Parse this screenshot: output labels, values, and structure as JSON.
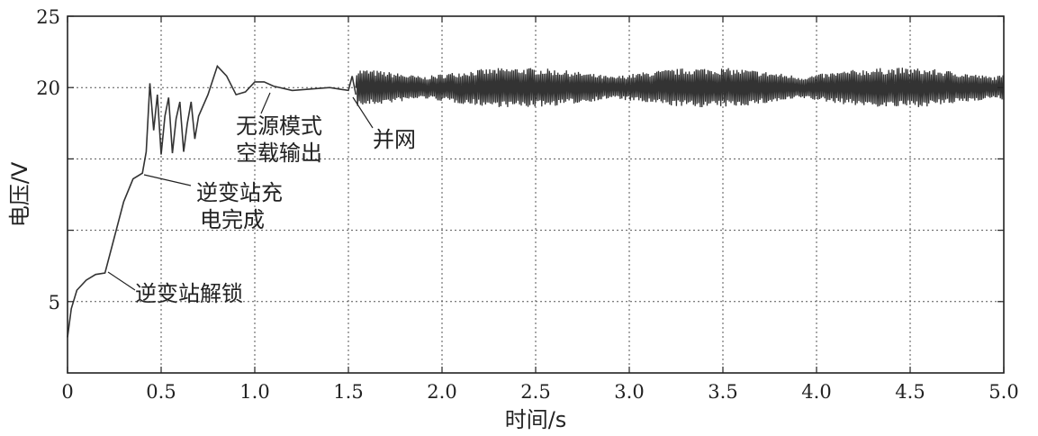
{
  "chart_data": {
    "type": "line",
    "xlabel": "时间/s",
    "ylabel": "电压/V",
    "xlim": [
      0,
      5.0
    ],
    "ylim": [
      0,
      25
    ],
    "grid": true,
    "x_ticks": [
      {
        "value": 0,
        "label": "0"
      },
      {
        "value": 0.5,
        "label": "0.5"
      },
      {
        "value": 1.0,
        "label": "1.0"
      },
      {
        "value": 1.5,
        "label": "1.5"
      },
      {
        "value": 2.0,
        "label": "2.0"
      },
      {
        "value": 2.5,
        "label": "2.5"
      },
      {
        "value": 3.0,
        "label": "3.0"
      },
      {
        "value": 3.5,
        "label": "3.5"
      },
      {
        "value": 4.0,
        "label": "4.0"
      },
      {
        "value": 4.5,
        "label": "4.5"
      },
      {
        "value": 5.0,
        "label": "5.0"
      }
    ],
    "y_ticks": [
      {
        "value": 5,
        "label": "5"
      },
      {
        "value": 20,
        "label": "20"
      },
      {
        "value": 25,
        "label": "25"
      }
    ],
    "y_grid": [
      5,
      10,
      15,
      20,
      25
    ],
    "series": [
      {
        "color": "#333333",
        "points": [
          [
            0.0,
            2.5
          ],
          [
            0.02,
            4.5
          ],
          [
            0.05,
            5.8
          ],
          [
            0.1,
            6.5
          ],
          [
            0.15,
            6.9
          ],
          [
            0.2,
            7.0
          ],
          [
            0.25,
            9.5
          ],
          [
            0.3,
            12.0
          ],
          [
            0.35,
            13.6
          ],
          [
            0.4,
            14.0
          ],
          [
            0.42,
            15.5
          ],
          [
            0.44,
            20.3
          ],
          [
            0.46,
            17.0
          ],
          [
            0.48,
            19.5
          ],
          [
            0.5,
            15.3
          ],
          [
            0.52,
            18.0
          ],
          [
            0.54,
            19.3
          ],
          [
            0.56,
            15.4
          ],
          [
            0.58,
            17.8
          ],
          [
            0.6,
            19.0
          ],
          [
            0.62,
            15.5
          ],
          [
            0.64,
            17.5
          ],
          [
            0.66,
            19.0
          ],
          [
            0.68,
            16.4
          ],
          [
            0.7,
            18.0
          ],
          [
            0.75,
            19.5
          ],
          [
            0.8,
            21.5
          ],
          [
            0.85,
            20.8
          ],
          [
            0.9,
            19.5
          ],
          [
            0.95,
            19.7
          ],
          [
            1.0,
            20.4
          ],
          [
            1.05,
            20.4
          ],
          [
            1.1,
            20.1
          ],
          [
            1.2,
            19.8
          ],
          [
            1.3,
            19.9
          ],
          [
            1.4,
            20.0
          ],
          [
            1.5,
            19.8
          ],
          [
            1.52,
            20.8
          ],
          [
            1.54,
            19.5
          ]
        ],
        "noise_segment": {
          "x_start": 1.54,
          "x_end": 5.0,
          "center": 20.0,
          "amplitude": 1.4
        }
      }
    ],
    "annotations": [
      {
        "lines": [
          "逆变站解锁"
        ],
        "x": 0.2,
        "y": 7.0
      },
      {
        "lines": [
          "逆变站充",
          "电完成"
        ],
        "x": 0.4,
        "y": 14.0
      },
      {
        "lines": [
          "无源模式",
          "空载输出"
        ],
        "x": 1.05,
        "y": 20.2
      },
      {
        "lines": [
          "并网"
        ],
        "x": 1.52,
        "y": 19.6
      }
    ]
  }
}
